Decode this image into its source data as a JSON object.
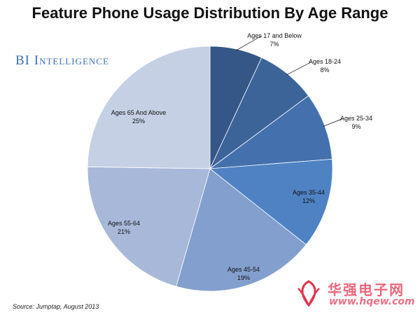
{
  "title": "Feature Phone Usage Distribution By Age Range",
  "brand": "BI Intelligence",
  "source": "Source: Jumptap, August 2013",
  "watermark": {
    "name": "华强电子网",
    "url": "www.hqew.com"
  },
  "colors": {
    "brand": "#3f6fb5",
    "watermark": "#e3344f",
    "slice_border": "#ffffff",
    "leader_line": "#000000"
  },
  "chart_data": {
    "type": "pie",
    "title": "Feature Phone Usage Distribution By Age Range",
    "start": "12 o'clock",
    "direction": "clockwise",
    "slices": [
      {
        "label": "Ages 17 and Below",
        "value": 7,
        "value_label": "7%",
        "color": "#345787"
      },
      {
        "label": "Ages 18-24",
        "value": 8,
        "value_label": "8%",
        "color": "#3d6499"
      },
      {
        "label": "Ages 25-34",
        "value": 9,
        "value_label": "9%",
        "color": "#4471ad"
      },
      {
        "label": "Ages 35-44",
        "value": 12,
        "value_label": "12%",
        "color": "#4f82c3"
      },
      {
        "label": "Ages 45-54",
        "value": 19,
        "value_label": "19%",
        "color": "#839fcd"
      },
      {
        "label": "Ages 55-64",
        "value": 21,
        "value_label": "21%",
        "color": "#a8b8d9"
      },
      {
        "label": "Ages 65 And Above",
        "value": 25,
        "value_label": "25%",
        "color": "#c5d0e5"
      }
    ]
  }
}
